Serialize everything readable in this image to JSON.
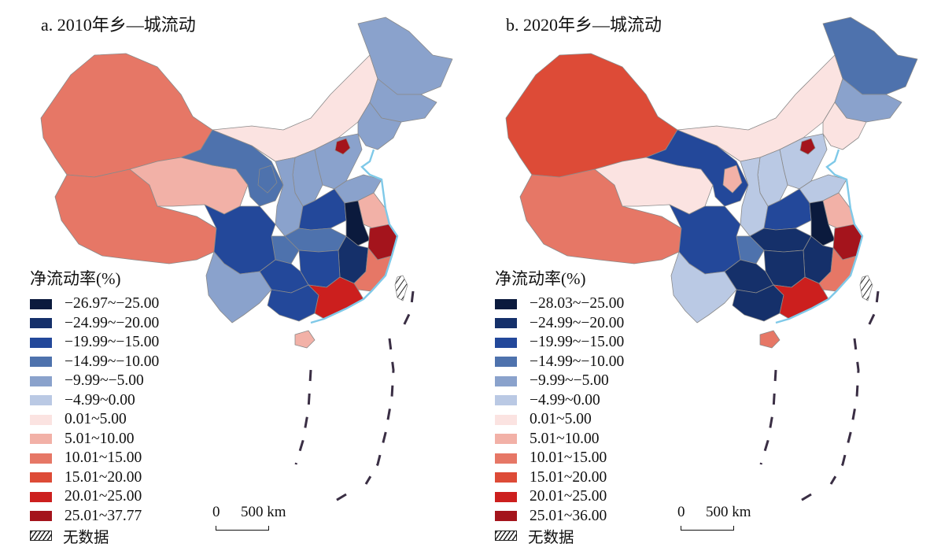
{
  "colors": {
    "c1": "#0b1a3d",
    "c2": "#15306a",
    "c3": "#23489a",
    "c4": "#4e72ad",
    "c5": "#8aa2cc",
    "c6": "#bac9e4",
    "c7": "#fbe3e1",
    "c8": "#f2b1a7",
    "c9": "#e67766",
    "c10": "#dd4b37",
    "c11": "#cc1f1e",
    "c12": "#a4141c",
    "outline": "#8a8a8a",
    "coast": "#7fc9e8"
  },
  "legend_title": "净流动率(%)",
  "nodata_label": "无数据",
  "scale": {
    "zero": "0",
    "km": "500 km"
  },
  "panel_a": {
    "title": "a. 2010年乡—城流动",
    "classes": [
      "−26.97~−25.00",
      "−24.99~−20.00",
      "−19.99~−15.00",
      "−14.99~−10.00",
      "−9.99~−5.00",
      "−4.99~0.00",
      "0.01~5.00",
      "5.01~10.00",
      "10.01~15.00",
      "15.01~20.00",
      "20.01~25.00",
      "25.01~37.77"
    ],
    "regions": {
      "xinjiang": "c9",
      "xizang": "c9",
      "qinghai": "c8",
      "gansu": "c4",
      "neimenggu": "c7",
      "heilongjiang": "c5",
      "jilin": "c5",
      "liaoning": "c5",
      "beijing": "c12",
      "hebei": "c5",
      "shanxi": "c5",
      "shaanxi": "c5",
      "ningxia": "c4",
      "henan": "c3",
      "shandong": "c5",
      "sichuan": "c3",
      "chongqing": "c4",
      "hubei": "c4",
      "anhui": "c1",
      "jiangsu": "c8",
      "zhejiang": "c12",
      "yunnan": "c5",
      "guizhou": "c3",
      "hunan": "c3",
      "jiangxi": "c2",
      "fujian": "c9",
      "guangxi": "c3",
      "guangdong": "c11",
      "hainan": "c8",
      "taiwan": "nodata"
    }
  },
  "panel_b": {
    "title": "b. 2020年乡—城流动",
    "classes": [
      "−28.03~−25.00",
      "−24.99~−20.00",
      "−19.99~−15.00",
      "−14.99~−10.00",
      "−9.99~−5.00",
      "−4.99~0.00",
      "0.01~5.00",
      "5.01~10.00",
      "10.01~15.00",
      "15.01~20.00",
      "20.01~25.00",
      "25.01~36.00"
    ],
    "regions": {
      "xinjiang": "c10",
      "xizang": "c9",
      "qinghai": "c7",
      "gansu": "c3",
      "neimenggu": "c7",
      "heilongjiang": "c4",
      "jilin": "c5",
      "liaoning": "c7",
      "beijing": "c12",
      "hebei": "c6",
      "shanxi": "c6",
      "shaanxi": "c6",
      "ningxia": "c8",
      "henan": "c3",
      "shandong": "c6",
      "sichuan": "c3",
      "chongqing": "c4",
      "hubei": "c2",
      "anhui": "c1",
      "jiangsu": "c8",
      "zhejiang": "c12",
      "yunnan": "c6",
      "guizhou": "c2",
      "hunan": "c2",
      "jiangxi": "c2",
      "fujian": "c9",
      "guangxi": "c2",
      "guangdong": "c11",
      "hainan": "c9",
      "taiwan": "nodata"
    }
  }
}
